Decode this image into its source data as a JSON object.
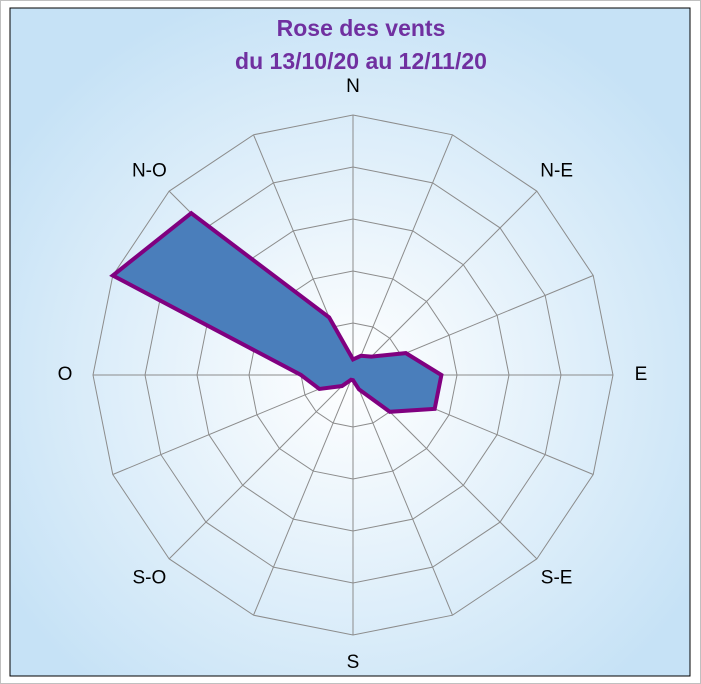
{
  "chart_data": {
    "type": "radar",
    "title": "Rose des vents",
    "subtitle": "du 13/10/20 au 12/11/20",
    "categories": [
      "N",
      null,
      "N-E",
      null,
      "E",
      null,
      "S-E",
      null,
      "S",
      null,
      "S-O",
      null,
      "O",
      null,
      "N-O",
      null
    ],
    "series": [
      {
        "color": "#4a7ebb",
        "edge_color": "#800080",
        "values": [
          0.3,
          0.4,
          0.5,
          1.1,
          1.7,
          1.7,
          1.0,
          0.3,
          0.1,
          0.1,
          0.3,
          0.7,
          1.0,
          5.0,
          4.4,
          1.2
        ]
      }
    ],
    "rlim": [
      0,
      5
    ],
    "rticks": [
      1,
      2,
      3,
      4,
      5
    ],
    "grid": true
  }
}
